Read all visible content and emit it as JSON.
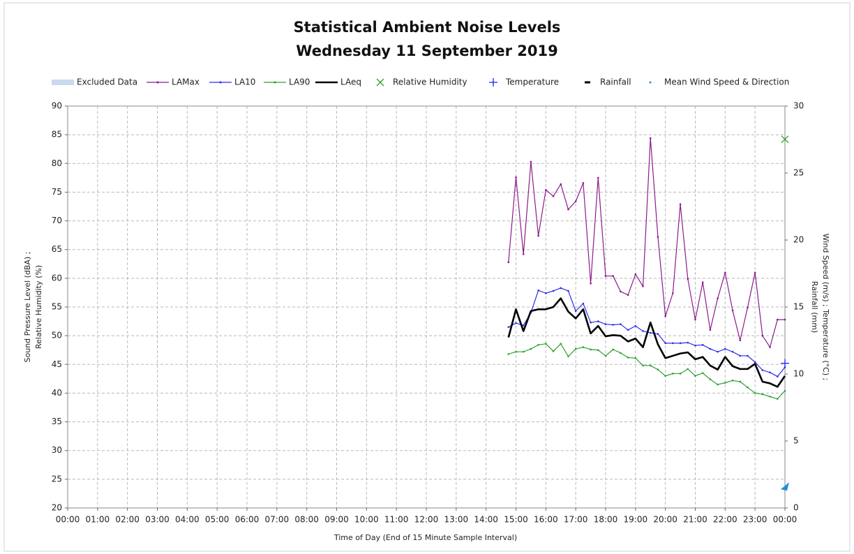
{
  "chart_data": {
    "type": "line",
    "title": "Statistical Ambient Noise Levels",
    "subtitle": "Wednesday 11 September 2019",
    "y_label": "Sound Pressure Level (dBA) ;",
    "y_label_2": "Relative Humidity (%)",
    "y2_label": "Wind Speed (m/s) ; Temperature (°C) ;",
    "y2_label_2": "Rainfall (mm)",
    "x_label": "Time of Day (End of 15 Minute Sample Interval)",
    "grid": true,
    "legend": "top",
    "xlim": [
      0,
      24
    ],
    "xticks": [
      {
        "value": 0,
        "label": "00:00"
      },
      {
        "value": 1,
        "label": "01:00"
      },
      {
        "value": 2,
        "label": "02:00"
      },
      {
        "value": 3,
        "label": "03:00"
      },
      {
        "value": 4,
        "label": "04:00"
      },
      {
        "value": 5,
        "label": "05:00"
      },
      {
        "value": 6,
        "label": "06:00"
      },
      {
        "value": 7,
        "label": "07:00"
      },
      {
        "value": 8,
        "label": "08:00"
      },
      {
        "value": 9,
        "label": "09:00"
      },
      {
        "value": 10,
        "label": "10:00"
      },
      {
        "value": 11,
        "label": "11:00"
      },
      {
        "value": 12,
        "label": "12:00"
      },
      {
        "value": 13,
        "label": "13:00"
      },
      {
        "value": 14,
        "label": "14:00"
      },
      {
        "value": 15,
        "label": "15:00"
      },
      {
        "value": 16,
        "label": "16:00"
      },
      {
        "value": 17,
        "label": "17:00"
      },
      {
        "value": 18,
        "label": "18:00"
      },
      {
        "value": 19,
        "label": "19:00"
      },
      {
        "value": 20,
        "label": "20:00"
      },
      {
        "value": 21,
        "label": "21:00"
      },
      {
        "value": 22,
        "label": "22:00"
      },
      {
        "value": 23,
        "label": "23:00"
      },
      {
        "value": 24,
        "label": "00:00"
      }
    ],
    "ylim": [
      20,
      90
    ],
    "yticks": [
      20,
      25,
      30,
      35,
      40,
      45,
      50,
      55,
      60,
      65,
      70,
      75,
      80,
      85,
      90
    ],
    "y2lim": [
      0,
      30
    ],
    "y2ticks": [
      0,
      5,
      10,
      15,
      20,
      25,
      30
    ],
    "x": [
      14.75,
      15,
      15.25,
      15.5,
      15.75,
      16,
      16.25,
      16.5,
      16.75,
      17,
      17.25,
      17.5,
      17.75,
      18,
      18.25,
      18.5,
      18.75,
      19,
      19.25,
      19.5,
      19.75,
      20,
      20.25,
      20.5,
      20.75,
      21,
      21.25,
      21.5,
      21.75,
      22,
      22.25,
      22.5,
      22.75,
      23,
      23.25,
      23.5,
      23.75,
      24
    ],
    "series": [
      {
        "name": "Excluded Data",
        "color": "#c9d9ee",
        "marker": "band",
        "values": [
          null,
          null,
          null,
          null,
          null,
          null,
          null,
          null,
          null,
          null,
          null,
          null,
          null,
          null,
          null,
          null,
          null,
          null,
          null,
          null,
          null,
          null,
          null,
          null,
          null,
          null,
          null,
          null,
          null,
          null,
          null,
          null,
          null,
          null,
          null,
          null,
          null,
          null
        ]
      },
      {
        "name": "LAMax",
        "color": "#8b1a8b",
        "marker": "line",
        "values": [
          62.8,
          77.6,
          64.2,
          80.3,
          67.4,
          75.4,
          74.3,
          76.4,
          72.0,
          73.4,
          76.6,
          59.1,
          77.5,
          60.4,
          60.4,
          57.7,
          57.1,
          60.7,
          58.6,
          84.4,
          67.2,
          53.4,
          57.4,
          72.9,
          59.9,
          52.8,
          59.3,
          51.0,
          56.5,
          61.0,
          54.4,
          49.2,
          54.9,
          61.0,
          50.0,
          48.0,
          52.8,
          52.8
        ]
      },
      {
        "name": "LA10",
        "color": "#2b2bf0",
        "marker": "line",
        "values": [
          51.5,
          52.2,
          51.8,
          54.0,
          57.9,
          57.4,
          57.8,
          58.3,
          57.8,
          54.3,
          55.6,
          52.3,
          52.5,
          52.0,
          51.9,
          52.0,
          51.0,
          51.7,
          50.8,
          50.5,
          50.3,
          48.7,
          48.7,
          48.7,
          48.8,
          48.3,
          48.4,
          47.7,
          47.2,
          47.7,
          47.2,
          46.5,
          46.5,
          45.4,
          44.0,
          43.6,
          42.9,
          44.5
        ]
      },
      {
        "name": "LA90",
        "color": "#2ea02e",
        "marker": "line",
        "values": [
          46.8,
          47.2,
          47.2,
          47.7,
          48.4,
          48.6,
          47.3,
          48.6,
          46.4,
          47.7,
          48.0,
          47.6,
          47.5,
          46.5,
          47.6,
          47.0,
          46.2,
          46.1,
          44.8,
          44.8,
          44.1,
          43.0,
          43.4,
          43.4,
          44.2,
          43.0,
          43.5,
          42.4,
          41.5,
          41.8,
          42.2,
          42.0,
          41.0,
          40.0,
          39.8,
          39.4,
          39.0,
          40.4
        ]
      },
      {
        "name": "LAeq",
        "color": "#000000",
        "marker": "thick",
        "values": [
          49.7,
          54.6,
          50.8,
          54.3,
          54.6,
          54.6,
          55.0,
          56.5,
          54.2,
          53.0,
          54.6,
          50.4,
          51.7,
          49.9,
          50.1,
          50.0,
          49.0,
          49.5,
          48.0,
          52.3,
          48.5,
          46.1,
          46.5,
          46.9,
          47.1,
          45.9,
          46.3,
          44.8,
          44.1,
          46.3,
          44.7,
          44.2,
          44.2,
          45.1,
          42.0,
          41.7,
          41.1,
          43.0
        ]
      },
      {
        "name": "Relative Humidity",
        "color": "#2ea02e",
        "marker": "x",
        "values": [
          null,
          null,
          null,
          null,
          null,
          null,
          null,
          null,
          null,
          null,
          null,
          null,
          null,
          null,
          null,
          null,
          null,
          null,
          null,
          null,
          null,
          null,
          null,
          null,
          null,
          null,
          null,
          null,
          null,
          null,
          null,
          null,
          null,
          null,
          null,
          null,
          null,
          84.2
        ]
      },
      {
        "name": "Temperature",
        "color": "#1a1aff",
        "marker": "plus",
        "axis": "y2",
        "values": [
          null,
          null,
          null,
          null,
          null,
          null,
          null,
          null,
          null,
          null,
          null,
          null,
          null,
          null,
          null,
          null,
          null,
          null,
          null,
          null,
          null,
          null,
          null,
          null,
          null,
          null,
          null,
          null,
          null,
          null,
          null,
          null,
          null,
          null,
          null,
          null,
          null,
          10.8
        ]
      },
      {
        "name": "Rainfall",
        "color": "#000000",
        "marker": "dash",
        "axis": "y2",
        "values": [
          null,
          null,
          null,
          null,
          null,
          null,
          null,
          null,
          null,
          null,
          null,
          null,
          null,
          null,
          null,
          null,
          null,
          null,
          null,
          null,
          null,
          null,
          null,
          null,
          null,
          null,
          null,
          null,
          null,
          null,
          null,
          null,
          null,
          null,
          null,
          null,
          null,
          null
        ]
      },
      {
        "name": "Mean Wind Speed & Direction",
        "color": "#1f8fd6",
        "marker": "arrow",
        "axis": "y2",
        "values": [
          null,
          null,
          null,
          null,
          null,
          null,
          null,
          null,
          null,
          null,
          null,
          null,
          null,
          null,
          null,
          null,
          null,
          null,
          null,
          null,
          null,
          null,
          null,
          null,
          null,
          null,
          null,
          null,
          null,
          null,
          null,
          null,
          null,
          null,
          null,
          null,
          null,
          1.6
        ]
      }
    ]
  }
}
